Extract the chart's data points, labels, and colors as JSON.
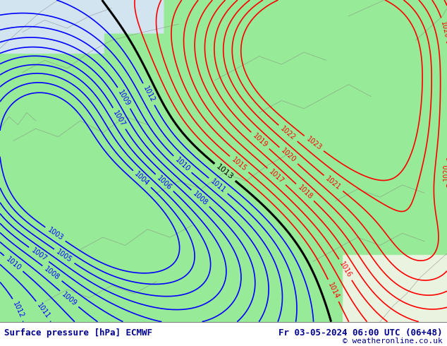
{
  "title_left": "Surface pressure [hPa] ECMWF",
  "title_right": "Fr 03-05-2024 06:00 UTC (06+48)",
  "copyright": "© weatheronline.co.uk",
  "bottom_bar_color": "#f0f0f0",
  "text_color": "#00008B",
  "background_land_color_rgb": [
    0.596,
    0.918,
    0.596
  ],
  "background_sea_color_rgb": [
    0.82,
    0.898,
    0.941
  ],
  "background_light_rgb": [
    0.92,
    0.95,
    0.88
  ],
  "contour_color_low": "#0000ff",
  "contour_color_high": "#ff0000",
  "contour_color_mid": "#000000",
  "figsize": [
    6.34,
    4.9
  ],
  "dpi": 100,
  "low_levels": [
    1003,
    1004,
    1005,
    1006,
    1007,
    1008,
    1009,
    1010,
    1011,
    1012
  ],
  "high_levels": [
    1014,
    1015,
    1016,
    1017,
    1018,
    1019,
    1020,
    1021,
    1022,
    1023
  ],
  "mid_levels": [
    1013
  ]
}
